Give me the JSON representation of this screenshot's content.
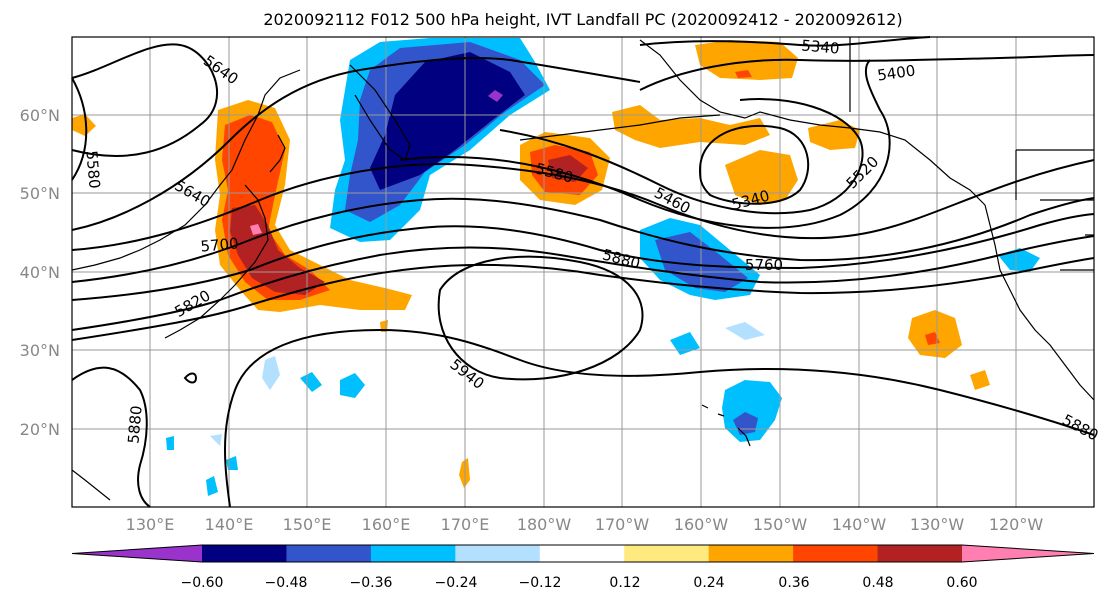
{
  "title": "2020092112 F012 500 hPa height, IVT Landfall PC (2020092412 - 2020092612)",
  "lon_labels": [
    "130°E",
    "140°E",
    "150°E",
    "160°E",
    "170°E",
    "180°W",
    "170°W",
    "160°W",
    "150°W",
    "140°W",
    "130°W",
    "120°W"
  ],
  "lat_labels": [
    "60°N",
    "50°N",
    "40°N",
    "30°N",
    "20°N"
  ],
  "contour_labels": [
    "5340",
    "5400",
    "5640",
    "5580",
    "5640",
    "5580",
    "5460",
    "5340",
    "5520",
    "5700",
    "5760",
    "5880",
    "5820",
    "5940",
    "5880",
    "5880"
  ],
  "colorbar": {
    "ticks": [
      "−0.60",
      "−0.48",
      "−0.36",
      "−0.24",
      "−0.12",
      "0.12",
      "0.24",
      "0.36",
      "0.48",
      "0.60"
    ],
    "colors": [
      "#9933cc",
      "#000080",
      "#3355cc",
      "#00bfff",
      "#b3e0ff",
      "#ffffff",
      "#ffea80",
      "#ffa500",
      "#ff4500",
      "#b22222",
      "#ff80b0"
    ]
  },
  "fill_colors": {
    "neg_dark": "#000080",
    "neg_mid": "#3355cc",
    "neg_light": "#00bfff",
    "neg_pale": "#b3e0ff",
    "neg_purple": "#9933cc",
    "pos_pale": "#ffea80",
    "pos_light": "#ffa500",
    "pos_mid": "#ff4500",
    "pos_dark": "#b22222",
    "pos_pink": "#ff80b0"
  }
}
